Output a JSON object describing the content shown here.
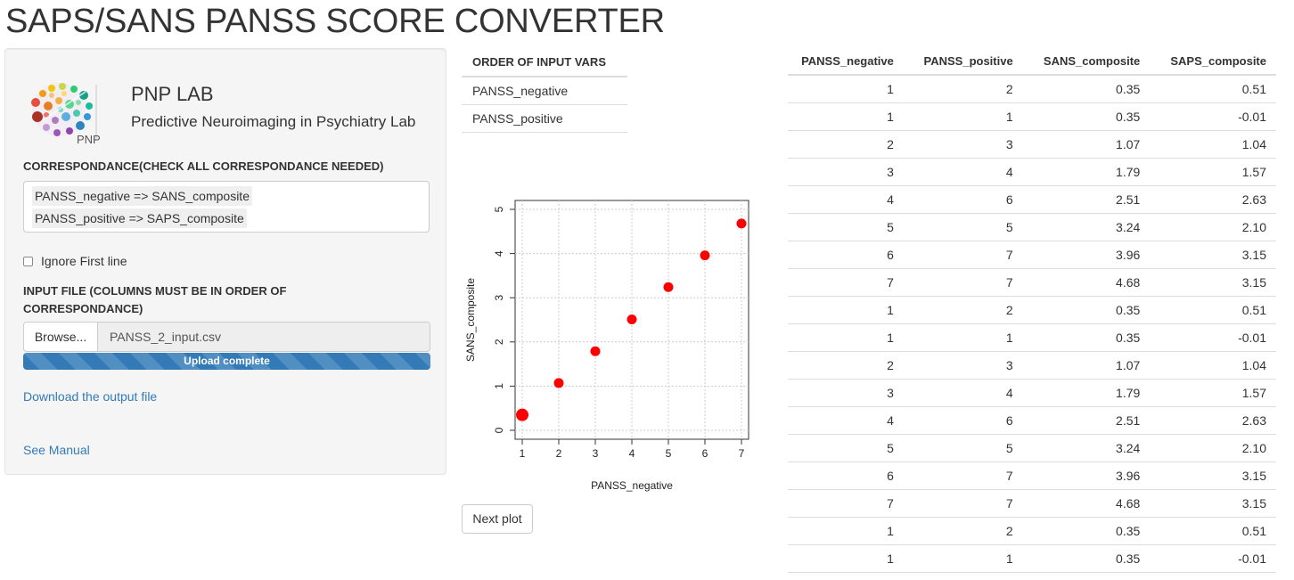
{
  "page": {
    "title": "SAPS/SANS PANSS SCORE CONVERTER"
  },
  "sidebar": {
    "logo_text": "PNP",
    "lab_name": "PNP LAB",
    "lab_subtitle": "Predictive Neuroimaging in Psychiatry Lab",
    "correspondance_label": "CORRESPONDANCE(CHECK ALL CORRESPONDANCE NEEDED)",
    "correspondance_selected": [
      "PANSS_negative => SANS_composite",
      "PANSS_positive => SAPS_composite"
    ],
    "ignore_first_line": {
      "label": "Ignore First line",
      "checked": false
    },
    "input_file_label": "INPUT FILE (COLUMNS MUST BE IN ORDER OF CORRESPONDANCE)",
    "browse_label": "Browse...",
    "file_name": "PANSS_2_input.csv",
    "upload_status": "Upload complete",
    "upload_progress": 1.0,
    "download_link": "Download the output file",
    "manual_link": "See Manual"
  },
  "order_table": {
    "header": "ORDER OF INPUT VARS",
    "rows": [
      "PANSS_negative",
      "PANSS_positive"
    ]
  },
  "chart_data": {
    "type": "scatter",
    "xlabel": "PANSS_negative",
    "ylabel": "SANS_composite",
    "x": [
      1,
      2,
      3,
      4,
      5,
      6,
      7
    ],
    "y": [
      0.35,
      1.07,
      1.79,
      2.51,
      3.24,
      3.96,
      4.68
    ],
    "xlim": [
      1,
      7
    ],
    "ylim": [
      0,
      5
    ],
    "x_ticks": [
      "1",
      "2",
      "3",
      "4",
      "5",
      "6",
      "7"
    ],
    "y_ticks": [
      "0",
      "1",
      "2",
      "3",
      "4",
      "5"
    ],
    "grid": true,
    "point_color": "#ff0000"
  },
  "next_plot_label": "Next plot",
  "data_table": {
    "columns": [
      "PANSS_negative",
      "PANSS_positive",
      "SANS_composite",
      "SAPS_composite"
    ],
    "rows": [
      [
        "1",
        "2",
        "0.35",
        "0.51"
      ],
      [
        "1",
        "1",
        "0.35",
        "-0.01"
      ],
      [
        "2",
        "3",
        "1.07",
        "1.04"
      ],
      [
        "3",
        "4",
        "1.79",
        "1.57"
      ],
      [
        "4",
        "6",
        "2.51",
        "2.63"
      ],
      [
        "5",
        "5",
        "3.24",
        "2.10"
      ],
      [
        "6",
        "7",
        "3.96",
        "3.15"
      ],
      [
        "7",
        "7",
        "4.68",
        "3.15"
      ],
      [
        "1",
        "2",
        "0.35",
        "0.51"
      ],
      [
        "1",
        "1",
        "0.35",
        "-0.01"
      ],
      [
        "2",
        "3",
        "1.07",
        "1.04"
      ],
      [
        "3",
        "4",
        "1.79",
        "1.57"
      ],
      [
        "4",
        "6",
        "2.51",
        "2.63"
      ],
      [
        "5",
        "5",
        "3.24",
        "2.10"
      ],
      [
        "6",
        "7",
        "3.96",
        "3.15"
      ],
      [
        "7",
        "7",
        "4.68",
        "3.15"
      ],
      [
        "1",
        "2",
        "0.35",
        "0.51"
      ],
      [
        "1",
        "1",
        "0.35",
        "-0.01"
      ]
    ]
  }
}
